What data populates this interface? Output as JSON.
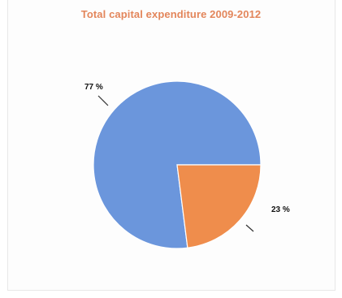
{
  "chart_data": {
    "type": "pie",
    "title": "Total capital expenditure 2009-2012",
    "slices": [
      {
        "label": "77 %",
        "value": 77,
        "color": "#6b96dc"
      },
      {
        "label": "23 %",
        "value": 23,
        "color": "#ef8d4c"
      }
    ],
    "legend": "none"
  }
}
